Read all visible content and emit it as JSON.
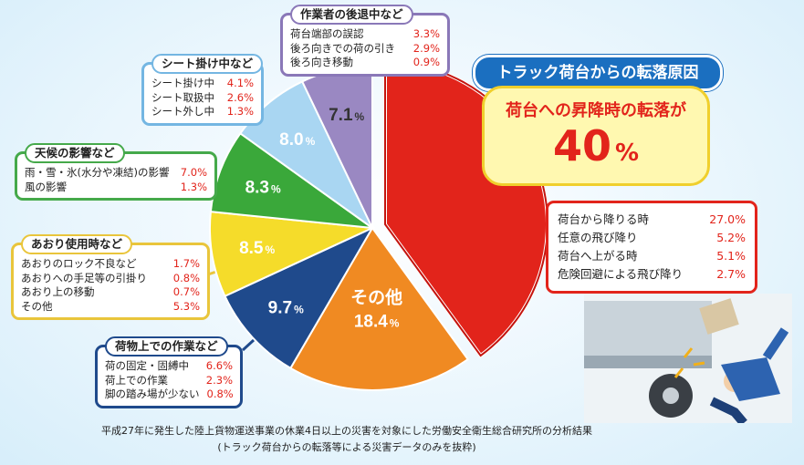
{
  "header": {
    "title": "トラック荷台からの転落原因"
  },
  "highlight": {
    "heading": "荷台への昇降時の転落が",
    "value": "40",
    "unit": "%"
  },
  "colors": {
    "red": "#e2241b",
    "orange": "#f08a22",
    "navy": "#1f4a8c",
    "yellow": "#f5dc2a",
    "green": "#3aa83a",
    "lightblue": "#a9d6f2",
    "purple": "#9a88c2",
    "accent": "#1b6fc0"
  },
  "chart_data": {
    "type": "pie",
    "slices": [
      {
        "label": "",
        "value": 40.0,
        "display": "",
        "color": "#e2241b"
      },
      {
        "label": "その他",
        "value": 18.4,
        "display": "18.4",
        "color": "#f08a22"
      },
      {
        "label": "",
        "value": 9.7,
        "display": "9.7",
        "color": "#1f4a8c"
      },
      {
        "label": "",
        "value": 8.5,
        "display": "8.5",
        "color": "#f5dc2a"
      },
      {
        "label": "",
        "value": 8.3,
        "display": "8.3",
        "color": "#3aa83a"
      },
      {
        "label": "",
        "value": 8.0,
        "display": "8.0",
        "color": "#a9d6f2"
      },
      {
        "label": "",
        "value": 7.1,
        "display": "7.1",
        "color": "#9a88c2"
      }
    ],
    "unit": "%"
  },
  "details": {
    "shoko": {
      "items": [
        {
          "label": "荷台から降りる時",
          "value": "27.0%"
        },
        {
          "label": "任意の飛び降り",
          "value": "5.2%"
        },
        {
          "label": "荷台へ上がる時",
          "value": "5.1%"
        },
        {
          "label": "危険回避による飛び降り",
          "value": "2.7%"
        }
      ]
    },
    "kotai": {
      "title": "作業者の後退中など",
      "items": [
        {
          "label": "荷台端部の誤認",
          "value": "3.3%"
        },
        {
          "label": "後ろ向きでの荷の引き",
          "value": "2.9%"
        },
        {
          "label": "後ろ向き移動",
          "value": "0.9%"
        }
      ]
    },
    "sheet": {
      "title": "シート掛け中など",
      "items": [
        {
          "label": "シート掛け中",
          "value": "4.1%"
        },
        {
          "label": "シート取扱中",
          "value": "2.6%"
        },
        {
          "label": "シート外し中",
          "value": "1.3%"
        }
      ]
    },
    "tenko": {
      "title": "天候の影響など",
      "items": [
        {
          "label": "雨・雪・氷(水分や凍結)の影響",
          "value": "7.0%"
        },
        {
          "label": "風の影響",
          "value": "1.3%"
        }
      ]
    },
    "aori": {
      "title": "あおり使用時など",
      "items": [
        {
          "label": "あおりのロック不良など",
          "value": "1.7%"
        },
        {
          "label": "あおりへの手足等の引掛り",
          "value": "0.8%"
        },
        {
          "label": "あおり上の移動",
          "value": "0.7%"
        },
        {
          "label": "その他",
          "value": "5.3%"
        }
      ]
    },
    "nimotsu": {
      "title": "荷物上での作業など",
      "items": [
        {
          "label": "荷の固定・固縛中",
          "value": "6.6%"
        },
        {
          "label": "荷上での作業",
          "value": "2.3%"
        },
        {
          "label": "脚の踏み場が少ない",
          "value": "0.8%"
        }
      ]
    }
  },
  "footer": {
    "line1": "平成27年に発生した陸上貨物運送事業の休業4日以上の災害を対象にした労働安全衛生総合研究所の分析結果",
    "line2": "(トラック荷台からの転落等による災害データのみを抜粋)"
  }
}
